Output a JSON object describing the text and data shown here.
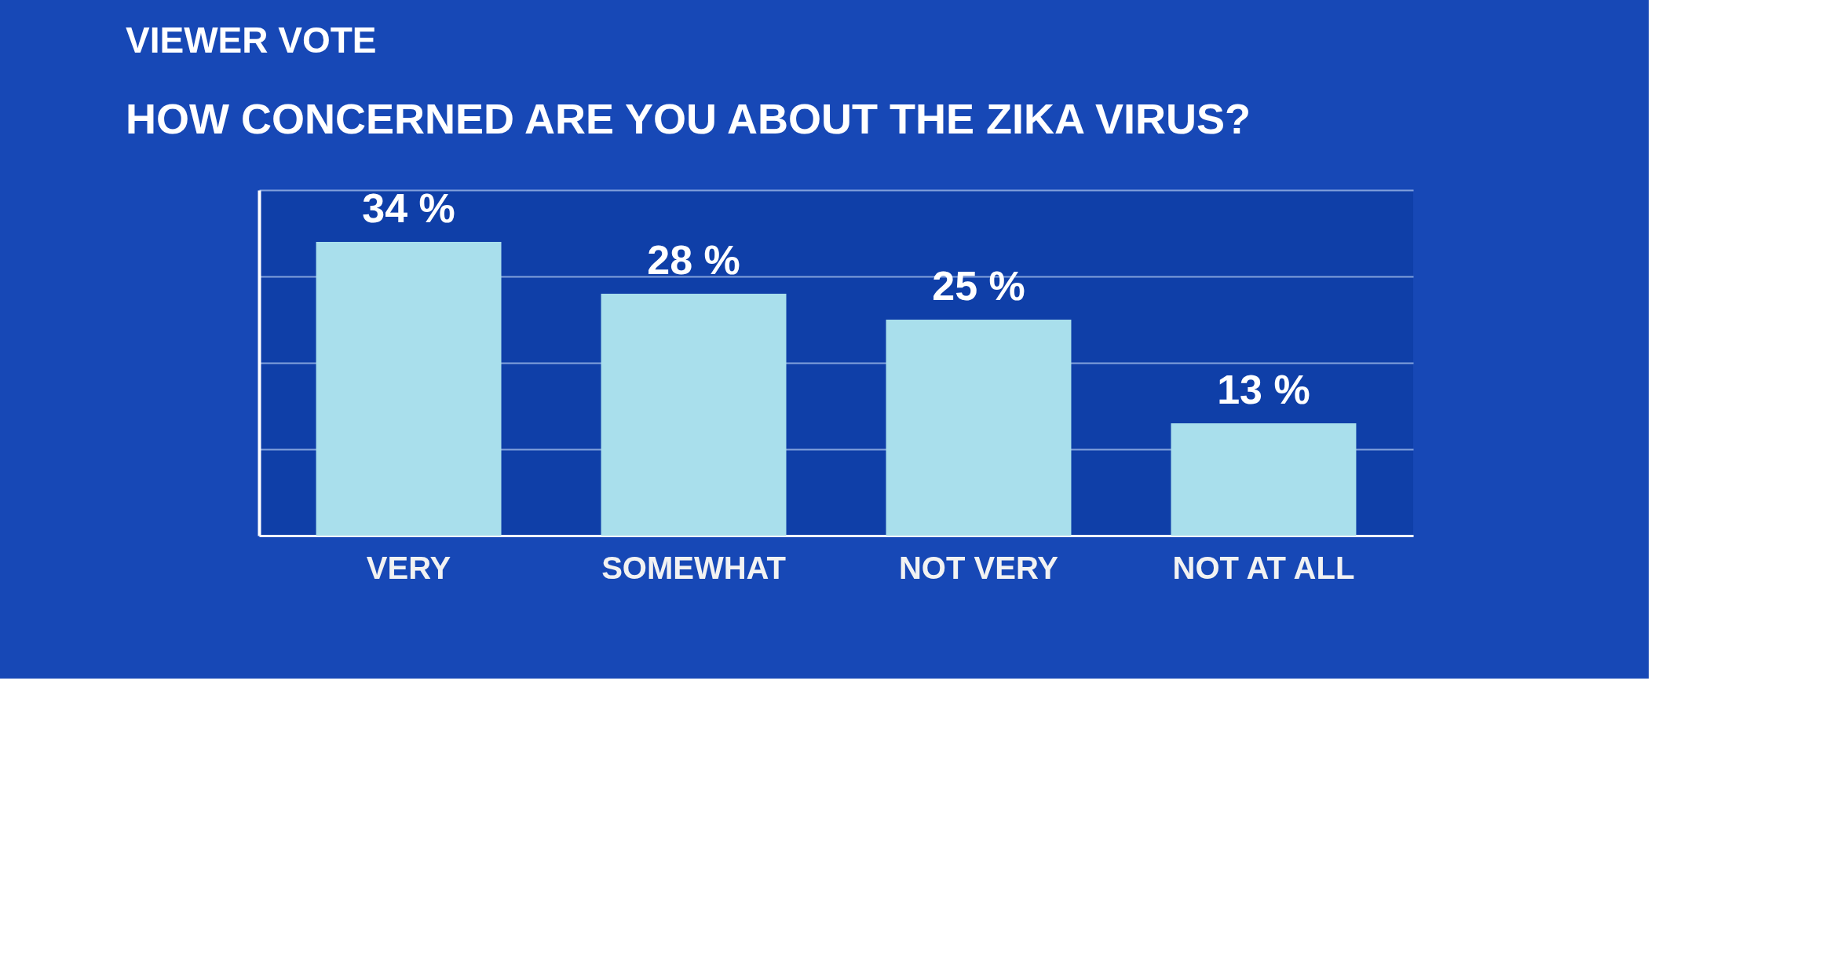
{
  "chart_data": {
    "type": "bar",
    "title": "HOW CONCERNED ARE YOU ABOUT THE ZIKA VIRUS?",
    "annotations": [
      "VIEWER VOTE"
    ],
    "categories": [
      "VERY",
      "SOMEWHAT",
      "NOT VERY",
      "NOT AT ALL"
    ],
    "values": [
      34,
      28,
      25,
      13
    ],
    "color": "#a9dfec",
    "value_labels": [
      "34 %",
      "28 %",
      "25 %",
      "13 %"
    ],
    "ylim": [
      0,
      40
    ],
    "yticks": [
      {
        "value": 10,
        "label": null
      },
      {
        "value": 20,
        "label": null
      },
      {
        "value": 30,
        "label": null
      },
      {
        "value": 40,
        "label": null
      }
    ],
    "tick_labels": "x",
    "grid": "y"
  }
}
